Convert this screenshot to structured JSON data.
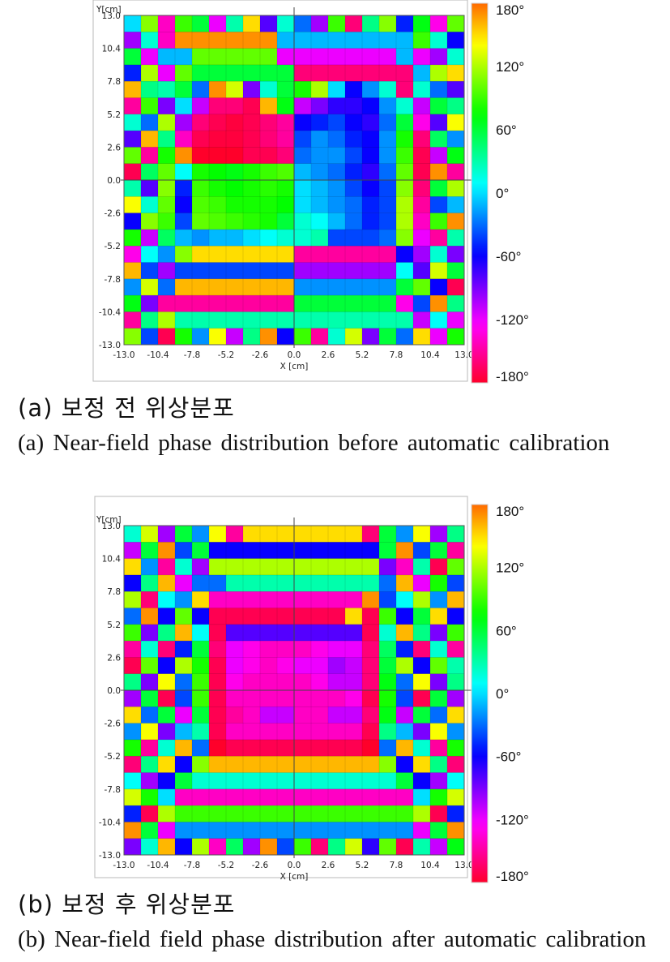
{
  "chart_data": [
    {
      "type": "heatmap",
      "xlabel": "X [cm]",
      "ylabel": "Y[cm]",
      "xlim": [
        -13.0,
        13.0
      ],
      "ylim": [
        -13.0,
        13.0
      ],
      "x_ticks": [
        "-13.0",
        "-10.4",
        "-7.8",
        "-5.2",
        "-2.6",
        "0.0",
        "2.6",
        "5.2",
        "7.8",
        "10.4",
        "13.0"
      ],
      "y_ticks": [
        "13.0",
        "10.4",
        "7.8",
        "5.2",
        "2.6",
        "0.0",
        "-2.6",
        "-5.2",
        "-7.8",
        "-10.4",
        "-13.0"
      ],
      "grid": true,
      "grid_size": [
        20,
        20
      ],
      "colorbar": {
        "range": [
          -180,
          180
        ],
        "tick_labels": [
          "180°",
          "120°",
          "60°",
          "0°",
          "-60°",
          "-120°",
          "-180°"
        ]
      },
      "caption_ko": "(a) 보정 전 위상분포",
      "caption_en": "(a) Near-field phase distribution before automatic calibration",
      "values_deg": [
        [
          0,
          110,
          -140,
          90,
          60,
          -120,
          30,
          150,
          -80,
          20,
          -30,
          -100,
          90,
          -160,
          40,
          110,
          -50,
          70,
          -130,
          100
        ],
        [
          -100,
          20,
          -140,
          170,
          170,
          170,
          170,
          170,
          170,
          -10,
          -10,
          -10,
          -10,
          -10,
          -10,
          -10,
          -10,
          90,
          20,
          -60
        ],
        [
          60,
          -120,
          -10,
          -10,
          100,
          100,
          100,
          100,
          100,
          -120,
          -120,
          -120,
          -120,
          -120,
          -120,
          -120,
          -10,
          -120,
          -100,
          20
        ],
        [
          -50,
          120,
          -120,
          100,
          60,
          60,
          60,
          60,
          60,
          60,
          -160,
          -160,
          -160,
          -160,
          -160,
          -160,
          -160,
          -10,
          120,
          150
        ],
        [
          160,
          40,
          30,
          60,
          -30,
          170,
          130,
          -90,
          20,
          60,
          80,
          120,
          0,
          -60,
          -20,
          20,
          -160,
          20,
          -30,
          -80
        ],
        [
          -150,
          90,
          -90,
          0,
          -110,
          -160,
          -160,
          -170,
          160,
          70,
          -110,
          -90,
          -70,
          -70,
          -60,
          -20,
          20,
          -110,
          60,
          40
        ],
        [
          20,
          -30,
          120,
          -100,
          -160,
          -170,
          -175,
          -170,
          -160,
          -150,
          -60,
          -50,
          -40,
          -60,
          -70,
          -30,
          60,
          -130,
          -80,
          140
        ],
        [
          -80,
          160,
          40,
          -140,
          -170,
          -175,
          -175,
          -170,
          -160,
          -150,
          -40,
          -20,
          -30,
          -50,
          -60,
          -20,
          80,
          -160,
          50,
          -20
        ],
        [
          100,
          -150,
          80,
          170,
          -180,
          -180,
          -180,
          -170,
          -170,
          -160,
          -30,
          -20,
          -20,
          -40,
          -60,
          -20,
          90,
          -170,
          -110,
          70
        ],
        [
          -170,
          50,
          100,
          10,
          80,
          75,
          70,
          80,
          90,
          95,
          -10,
          -20,
          -30,
          -50,
          -70,
          -30,
          100,
          -170,
          170,
          -150
        ],
        [
          30,
          -80,
          110,
          -50,
          90,
          80,
          75,
          80,
          85,
          80,
          0,
          -10,
          -20,
          -40,
          -60,
          -40,
          110,
          -160,
          60,
          120
        ],
        [
          140,
          20,
          100,
          -60,
          95,
          90,
          80,
          80,
          80,
          75,
          0,
          -10,
          -20,
          -30,
          -50,
          -40,
          120,
          -150,
          -40,
          -10
        ],
        [
          -60,
          110,
          90,
          -40,
          100,
          95,
          90,
          85,
          80,
          60,
          20,
          10,
          -10,
          -30,
          -50,
          -40,
          120,
          -140,
          90,
          170
        ],
        [
          80,
          -110,
          50,
          -10,
          -20,
          -10,
          -10,
          0,
          10,
          20,
          20,
          30,
          -40,
          -40,
          -40,
          -30,
          110,
          -120,
          -150,
          30
        ],
        [
          -130,
          10,
          -20,
          110,
          150,
          150,
          150,
          150,
          150,
          150,
          -150,
          -150,
          -150,
          -150,
          -150,
          -150,
          -60,
          -100,
          20,
          -90
        ],
        [
          160,
          -40,
          -100,
          -40,
          -40,
          -40,
          -40,
          -40,
          -40,
          -40,
          -100,
          -100,
          -100,
          -100,
          -100,
          -100,
          10,
          -80,
          130,
          60
        ],
        [
          -20,
          130,
          -30,
          160,
          160,
          160,
          160,
          160,
          160,
          160,
          -20,
          -20,
          -20,
          -20,
          -20,
          -20,
          60,
          100,
          -60,
          -170
        ],
        [
          70,
          -90,
          -150,
          -150,
          -150,
          -150,
          -150,
          -150,
          -150,
          -150,
          60,
          60,
          60,
          60,
          60,
          60,
          -130,
          -40,
          170,
          40
        ],
        [
          -150,
          40,
          120,
          30,
          30,
          30,
          30,
          30,
          30,
          30,
          30,
          30,
          30,
          30,
          30,
          30,
          30,
          -110,
          10,
          -120
        ],
        [
          110,
          -40,
          -170,
          80,
          -20,
          140,
          -110,
          40,
          170,
          -60,
          90,
          -150,
          20,
          130,
          -90,
          60,
          -30,
          150,
          -120,
          80
        ]
      ]
    },
    {
      "type": "heatmap",
      "xlabel": "X [cm]",
      "ylabel": "Y[cm]",
      "xlim": [
        -13.0,
        13.0
      ],
      "ylim": [
        -13.0,
        13.0
      ],
      "x_ticks": [
        "-13.0",
        "-10.4",
        "-7.8",
        "-5.2",
        "-2.6",
        "0.0",
        "2.6",
        "5.2",
        "7.8",
        "10.4",
        "13.0"
      ],
      "y_ticks": [
        "13.0",
        "10.4",
        "7.8",
        "5.2",
        "2.6",
        "0.0",
        "-2.6",
        "-5.2",
        "-7.8",
        "-10.4",
        "-13.0"
      ],
      "grid": true,
      "grid_size": [
        20,
        20
      ],
      "colorbar": {
        "range": [
          -180,
          180
        ],
        "tick_labels": [
          "180°",
          "120°",
          "60°",
          "0°",
          "-60°",
          "-120°",
          "-180°"
        ]
      },
      "caption_ko": "(b) 보정 후 위상분포",
      "caption_en": "(b) Near-field field phase distribution after automatic calibration",
      "values_deg": [
        [
          20,
          130,
          -100,
          60,
          -20,
          140,
          -150,
          150,
          150,
          150,
          150,
          150,
          150,
          150,
          -160,
          60,
          -20,
          140,
          -100,
          40
        ],
        [
          -110,
          60,
          170,
          -40,
          60,
          -60,
          -60,
          -60,
          -60,
          -60,
          -60,
          -60,
          -60,
          -60,
          -60,
          60,
          170,
          -40,
          60,
          -150
        ],
        [
          150,
          -20,
          -150,
          20,
          -100,
          120,
          120,
          120,
          120,
          120,
          120,
          120,
          120,
          120,
          120,
          -90,
          -140,
          30,
          -170,
          100
        ],
        [
          -60,
          40,
          160,
          -120,
          -30,
          -30,
          30,
          30,
          30,
          30,
          30,
          30,
          30,
          30,
          30,
          -30,
          160,
          -120,
          80,
          -40
        ],
        [
          120,
          -160,
          10,
          -20,
          150,
          -140,
          -140,
          -140,
          -140,
          -140,
          -140,
          -140,
          -140,
          -140,
          170,
          -40,
          10,
          120,
          -20,
          160
        ],
        [
          -30,
          170,
          -60,
          100,
          -60,
          -170,
          -170,
          -170,
          -170,
          -170,
          -170,
          -170,
          -170,
          150,
          -170,
          90,
          -60,
          60,
          150,
          -60
        ],
        [
          90,
          -90,
          40,
          160,
          10,
          -170,
          -80,
          -80,
          -80,
          -80,
          -80,
          -80,
          -80,
          -80,
          -170,
          20,
          160,
          40,
          -90,
          90
        ],
        [
          -150,
          20,
          -160,
          -50,
          60,
          -160,
          -120,
          -130,
          -140,
          -140,
          -140,
          -130,
          -120,
          -120,
          -160,
          50,
          -50,
          -160,
          20,
          -150
        ],
        [
          -170,
          100,
          -60,
          120,
          80,
          -170,
          -120,
          -130,
          -140,
          -130,
          -120,
          -120,
          -100,
          -110,
          -160,
          60,
          120,
          -60,
          100,
          30
        ],
        [
          40,
          -90,
          140,
          -30,
          90,
          -170,
          -130,
          -140,
          -140,
          -140,
          -140,
          -130,
          -110,
          -110,
          -160,
          70,
          -30,
          140,
          -90,
          40
        ],
        [
          -100,
          60,
          -170,
          -40,
          90,
          -170,
          -140,
          -140,
          -140,
          -140,
          -140,
          -140,
          -140,
          -130,
          -170,
          80,
          -40,
          -170,
          60,
          -100
        ],
        [
          150,
          -30,
          60,
          -120,
          60,
          -170,
          -150,
          -140,
          -110,
          -110,
          -140,
          -140,
          -110,
          -110,
          -160,
          70,
          -110,
          60,
          -30,
          150
        ],
        [
          -20,
          140,
          -90,
          -10,
          30,
          -170,
          -140,
          -140,
          -140,
          -140,
          -140,
          -140,
          -140,
          -140,
          -170,
          40,
          -10,
          -90,
          140,
          -20
        ],
        [
          80,
          -150,
          20,
          160,
          -30,
          -180,
          -170,
          -170,
          -170,
          -170,
          -170,
          -170,
          -170,
          -170,
          -180,
          -30,
          160,
          20,
          -150,
          80
        ],
        [
          -160,
          40,
          150,
          -60,
          110,
          160,
          160,
          160,
          160,
          160,
          160,
          160,
          160,
          160,
          160,
          110,
          -60,
          150,
          40,
          -160
        ],
        [
          10,
          -100,
          -60,
          60,
          20,
          20,
          20,
          20,
          20,
          20,
          20,
          20,
          20,
          20,
          20,
          20,
          60,
          -60,
          -100,
          10
        ],
        [
          130,
          80,
          0,
          -140,
          -140,
          -140,
          -140,
          -140,
          -140,
          -140,
          -140,
          -140,
          -140,
          -140,
          -140,
          -140,
          -140,
          0,
          80,
          130
        ],
        [
          -50,
          -170,
          120,
          90,
          90,
          90,
          90,
          90,
          90,
          90,
          90,
          90,
          90,
          90,
          90,
          90,
          90,
          120,
          -170,
          -50
        ],
        [
          170,
          60,
          -120,
          -20,
          -20,
          -20,
          -20,
          -20,
          -20,
          -20,
          -20,
          -20,
          -20,
          -20,
          -20,
          -20,
          -20,
          -120,
          60,
          170
        ],
        [
          -90,
          20,
          160,
          -60,
          120,
          -140,
          50,
          -100,
          170,
          -40,
          90,
          -160,
          40,
          130,
          -70,
          100,
          -170,
          30,
          -110,
          70
        ]
      ]
    }
  ]
}
